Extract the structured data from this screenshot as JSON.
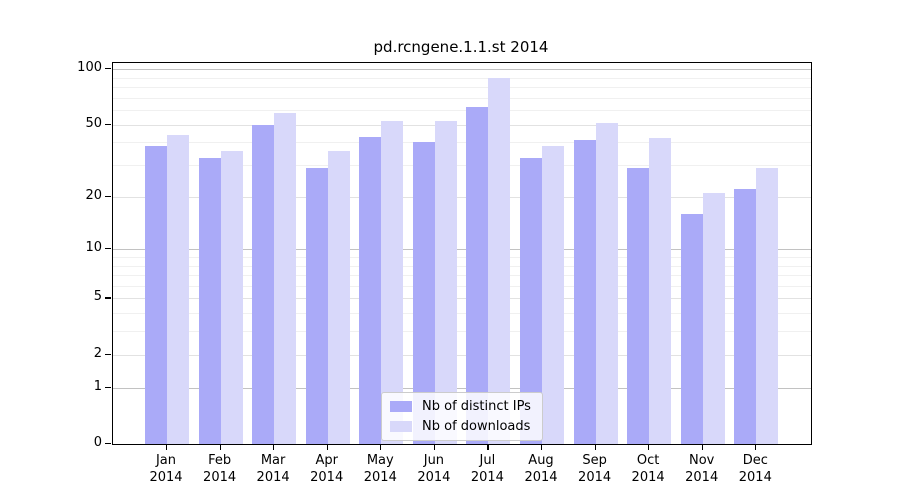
{
  "chart_data": {
    "type": "bar",
    "title": "pd.rcngene.1.1.st 2014",
    "categories": [
      "Jan",
      "Feb",
      "Mar",
      "Apr",
      "May",
      "Jun",
      "Jul",
      "Aug",
      "Sep",
      "Oct",
      "Nov",
      "Dec"
    ],
    "category_year": "2014",
    "series": [
      {
        "name": "Nb of distinct IPs",
        "color": "#aaaaf8",
        "values": [
          38,
          33,
          50,
          29,
          43,
          40,
          62,
          33,
          41,
          29,
          16,
          22
        ]
      },
      {
        "name": "Nb of downloads",
        "color": "#d8d8fa",
        "values": [
          44,
          36,
          58,
          36,
          52,
          52,
          89,
          38,
          51,
          42,
          21,
          29
        ]
      }
    ],
    "xlabel": "",
    "ylabel": "",
    "y_axis": {
      "scale": "log1p",
      "tick_values": [
        0,
        1,
        2,
        5,
        10,
        20,
        50,
        100
      ],
      "labeled_minor_gridlines": [
        2,
        5,
        20,
        50
      ],
      "minor_gridlines": [
        3,
        4,
        6,
        7,
        8,
        9,
        30,
        40,
        60,
        70,
        80,
        90
      ],
      "major_gridlines": [
        1,
        10,
        100
      ],
      "ylim": [
        0,
        108
      ]
    },
    "grid": "on",
    "legend_position": "bottom-center"
  },
  "colors": {
    "bar_distinct_ips": "#aaaaf8",
    "bar_downloads": "#d8d8fa",
    "grid_major": "#c2c2c2",
    "grid_mid": "#e2e2e2",
    "grid_minor": "#f0f0f0",
    "axis": "#000000",
    "legend_border": "#cccccc"
  }
}
